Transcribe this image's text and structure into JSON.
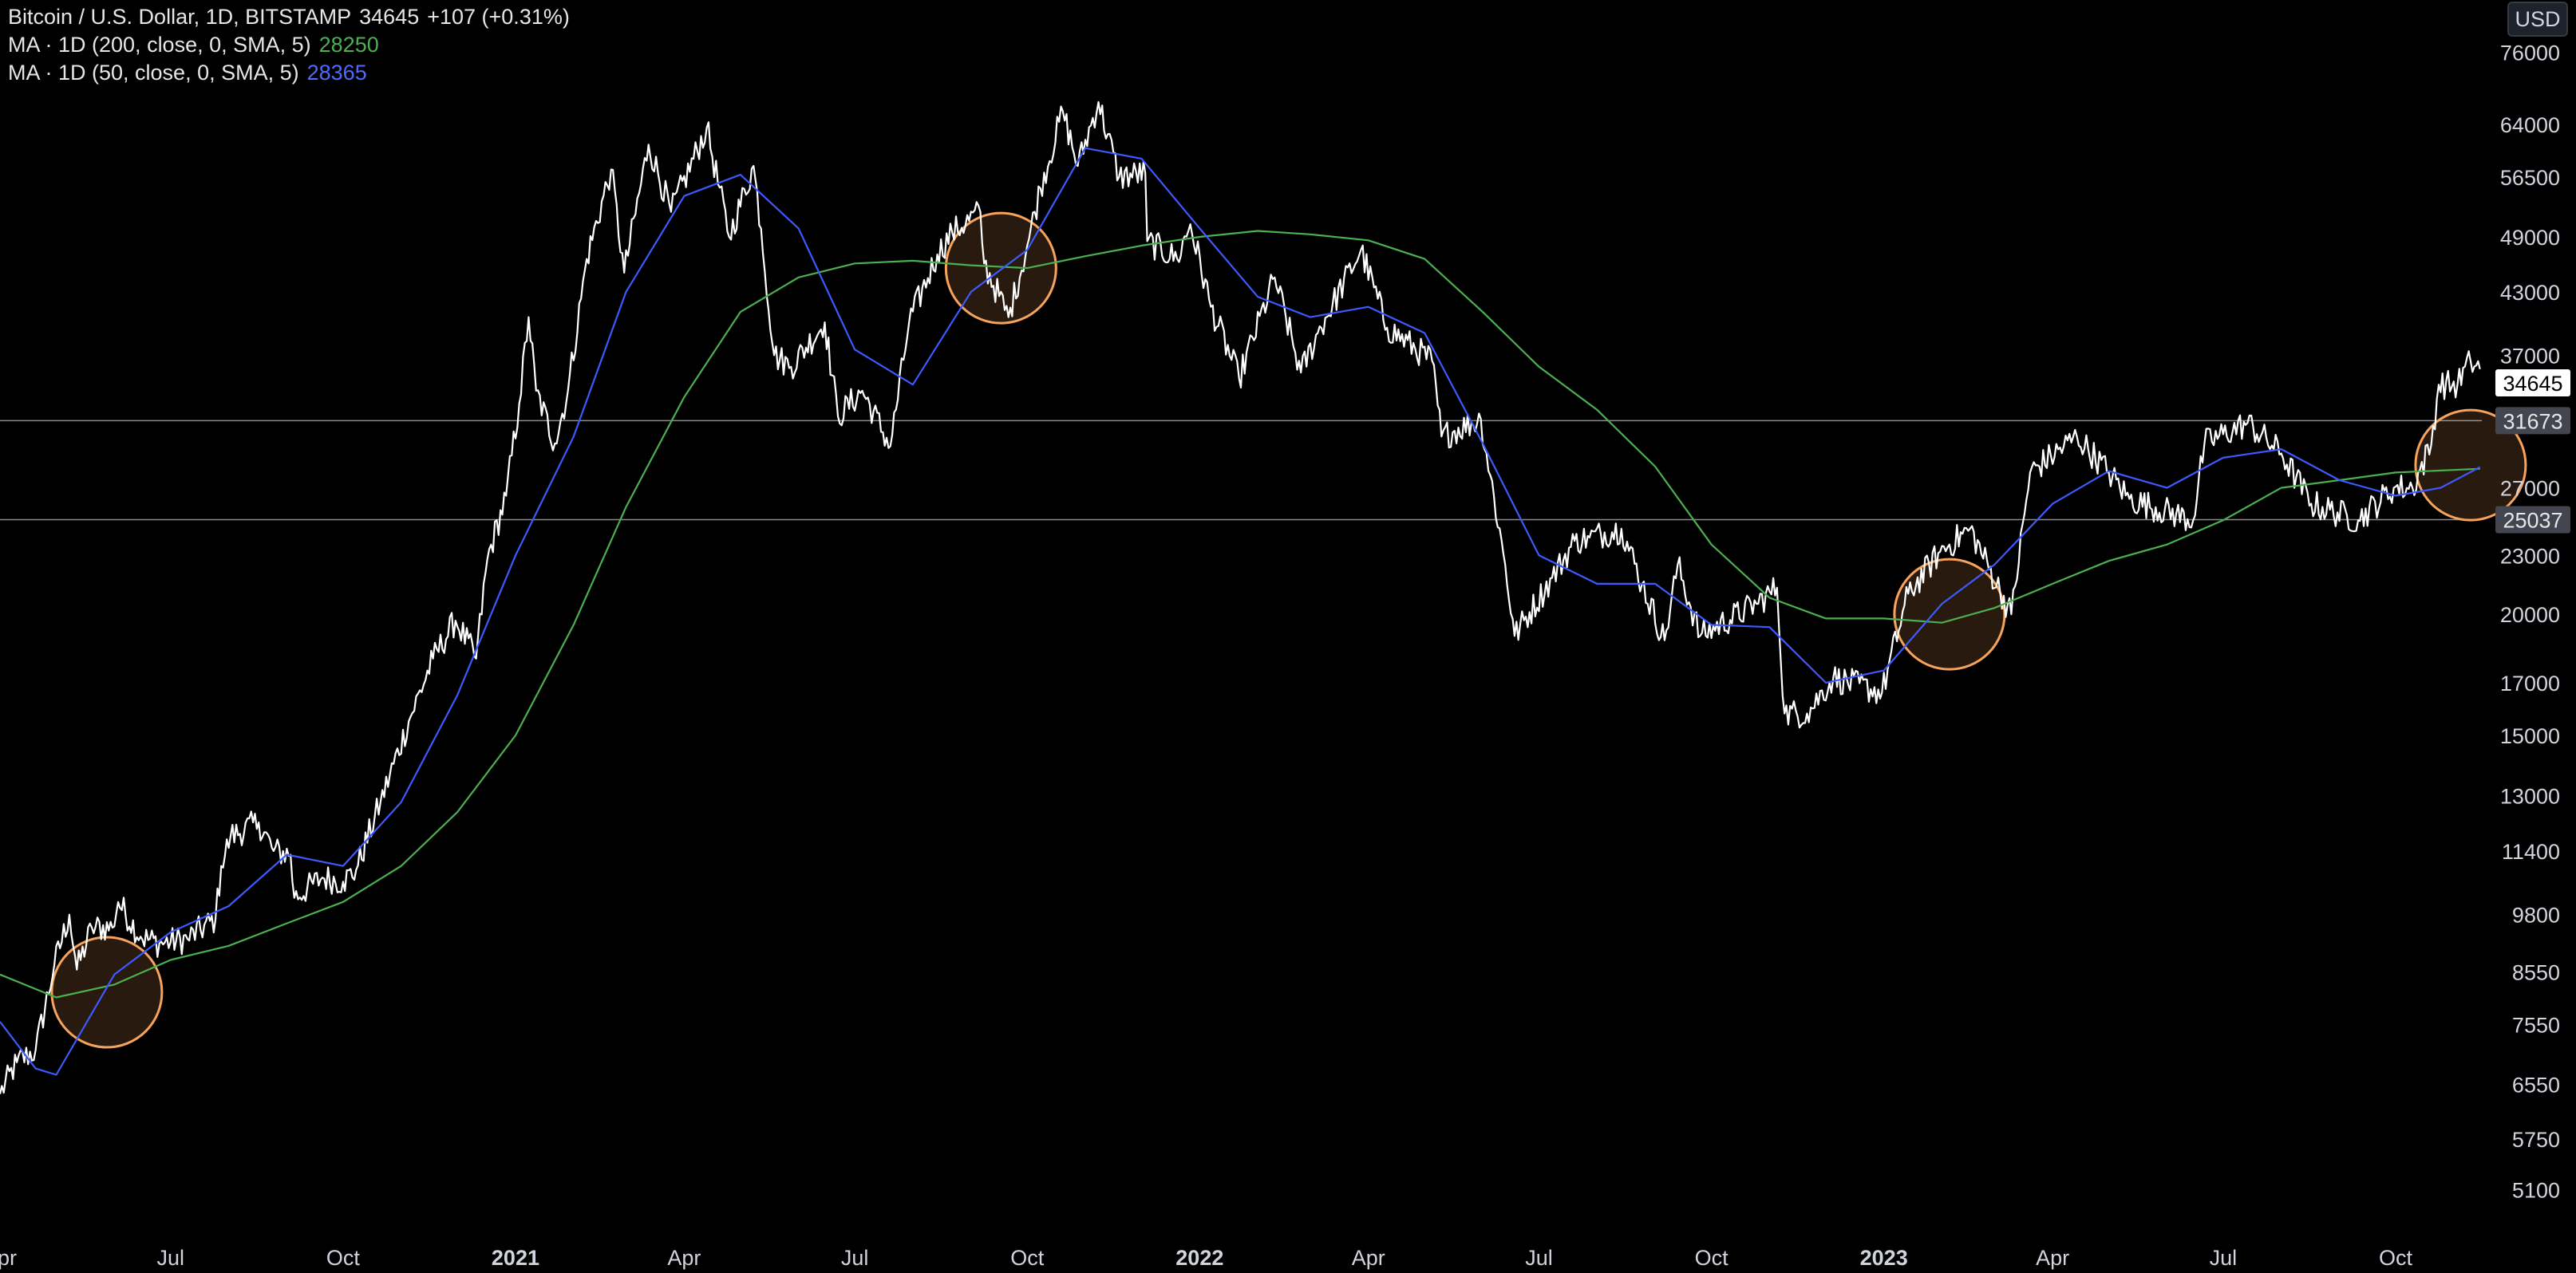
{
  "header": {
    "symbol_text": "Bitcoin / U.S. Dollar, 1D, BITSTAMP",
    "last_price": "34645",
    "change": "+107 (+0.31%)",
    "ma200_label": "MA · 1D (200, close, 0, SMA, 5)",
    "ma200_value": "28250",
    "ma50_label": "MA · 1D (50, close, 0, SMA, 5)",
    "ma50_value": "28365",
    "currency_button": "USD"
  },
  "colors": {
    "background": "#000000",
    "price": "#ffffff",
    "ma200": "#4caf50",
    "ma50": "#3d5afe",
    "highlight_circle": "#f7a35c",
    "level_line": "#8c8c8c",
    "axis_text": "#d1d4dc"
  },
  "chart_data": {
    "type": "line",
    "scale": "log",
    "ylim": [
      4600,
      86000
    ],
    "xlim": [
      "2020-04-01",
      "2023-11-16"
    ],
    "y_ticks": [
      "76000",
      "64000",
      "56500",
      "49000",
      "43000",
      "37000",
      "27000",
      "23000",
      "20000",
      "17000",
      "15000",
      "13000",
      "11400",
      "9800",
      "8550",
      "7550",
      "6550",
      "5750",
      "5100"
    ],
    "x_ticks": [
      {
        "date": "2020-04-01",
        "label": "Apr",
        "bold": false
      },
      {
        "date": "2020-07-01",
        "label": "Jul",
        "bold": false
      },
      {
        "date": "2020-10-01",
        "label": "Oct",
        "bold": false
      },
      {
        "date": "2021-01-01",
        "label": "2021",
        "bold": true
      },
      {
        "date": "2021-04-01",
        "label": "Apr",
        "bold": false
      },
      {
        "date": "2021-07-01",
        "label": "Jul",
        "bold": false
      },
      {
        "date": "2021-10-01",
        "label": "Oct",
        "bold": false
      },
      {
        "date": "2022-01-01",
        "label": "2022",
        "bold": true
      },
      {
        "date": "2022-04-01",
        "label": "Apr",
        "bold": false
      },
      {
        "date": "2022-07-01",
        "label": "Jul",
        "bold": false
      },
      {
        "date": "2022-10-01",
        "label": "Oct",
        "bold": false
      },
      {
        "date": "2023-01-01",
        "label": "2023",
        "bold": true
      },
      {
        "date": "2023-04-01",
        "label": "Apr",
        "bold": false
      },
      {
        "date": "2023-07-01",
        "label": "Jul",
        "bold": false
      },
      {
        "date": "2023-10-01",
        "label": "Oct",
        "bold": false
      }
    ],
    "price_labels": [
      {
        "value": 34645,
        "label": "34645",
        "style": "current"
      },
      {
        "value": 31673,
        "label": "31673",
        "style": "level"
      },
      {
        "value": 25037,
        "label": "25037",
        "style": "level"
      }
    ],
    "horizontal_levels": [
      31673,
      25037
    ],
    "series": [
      {
        "name": "Bitcoin / U.S. Dollar",
        "color": "#ffffff",
        "points": [
          [
            "2020-04-01",
            6400
          ],
          [
            "2020-04-10",
            6900
          ],
          [
            "2020-04-20",
            7100
          ],
          [
            "2020-04-30",
            8700
          ],
          [
            "2020-05-08",
            9800
          ],
          [
            "2020-05-12",
            8600
          ],
          [
            "2020-05-20",
            9500
          ],
          [
            "2020-05-31",
            9500
          ],
          [
            "2020-06-03",
            10100
          ],
          [
            "2020-06-15",
            9300
          ],
          [
            "2020-06-25",
            9150
          ],
          [
            "2020-07-10",
            9250
          ],
          [
            "2020-07-25",
            9700
          ],
          [
            "2020-07-28",
            11000
          ],
          [
            "2020-08-02",
            11800
          ],
          [
            "2020-08-17",
            12200
          ],
          [
            "2020-08-25",
            11400
          ],
          [
            "2020-09-03",
            11300
          ],
          [
            "2020-09-05",
            10200
          ],
          [
            "2020-09-20",
            10700
          ],
          [
            "2020-10-01",
            10600
          ],
          [
            "2020-10-08",
            10900
          ],
          [
            "2020-10-21",
            12800
          ],
          [
            "2020-11-05",
            15500
          ],
          [
            "2020-11-18",
            18000
          ],
          [
            "2020-11-30",
            19700
          ],
          [
            "2020-12-11",
            18000
          ],
          [
            "2020-12-17",
            22800
          ],
          [
            "2020-12-27",
            26500
          ],
          [
            "2021-01-03",
            33000
          ],
          [
            "2021-01-08",
            40500
          ],
          [
            "2021-01-12",
            34000
          ],
          [
            "2021-01-22",
            30000
          ],
          [
            "2021-01-29",
            34000
          ],
          [
            "2021-02-08",
            46500
          ],
          [
            "2021-02-21",
            57500
          ],
          [
            "2021-02-28",
            45000
          ],
          [
            "2021-03-13",
            61000
          ],
          [
            "2021-03-25",
            52000
          ],
          [
            "2021-04-13",
            63500
          ],
          [
            "2021-04-25",
            49000
          ],
          [
            "2021-05-08",
            58000
          ],
          [
            "2021-05-12",
            50000
          ],
          [
            "2021-05-19",
            37000
          ],
          [
            "2021-05-28",
            36000
          ],
          [
            "2021-06-15",
            40000
          ],
          [
            "2021-06-22",
            32000
          ],
          [
            "2021-07-05",
            34000
          ],
          [
            "2021-07-20",
            29800
          ],
          [
            "2021-07-30",
            40000
          ],
          [
            "2021-08-14",
            47000
          ],
          [
            "2021-08-22",
            49500
          ],
          [
            "2021-09-06",
            52000
          ],
          [
            "2021-09-08",
            46000
          ],
          [
            "2021-09-21",
            40500
          ],
          [
            "2021-10-01",
            48000
          ],
          [
            "2021-10-08",
            55000
          ],
          [
            "2021-10-20",
            66000
          ],
          [
            "2021-10-28",
            58000
          ],
          [
            "2021-11-08",
            67500
          ],
          [
            "2021-11-19",
            56500
          ],
          [
            "2021-12-03",
            57000
          ],
          [
            "2021-12-04",
            48500
          ],
          [
            "2021-12-20",
            46500
          ],
          [
            "2021-12-27",
            50500
          ],
          [
            "2022-01-07",
            41500
          ],
          [
            "2022-01-22",
            35000
          ],
          [
            "2022-02-10",
            44500
          ],
          [
            "2022-02-24",
            35500
          ],
          [
            "2022-03-05",
            39000
          ],
          [
            "2022-03-28",
            47500
          ],
          [
            "2022-04-11",
            39500
          ],
          [
            "2022-05-05",
            36500
          ],
          [
            "2022-05-10",
            30500
          ],
          [
            "2022-05-31",
            31800
          ],
          [
            "2022-06-13",
            22500
          ],
          [
            "2022-06-18",
            19000
          ],
          [
            "2022-07-08",
            21800
          ],
          [
            "2022-07-20",
            23800
          ],
          [
            "2022-07-28",
            24000
          ],
          [
            "2022-08-14",
            24500
          ],
          [
            "2022-08-25",
            21500
          ],
          [
            "2022-09-06",
            18800
          ],
          [
            "2022-09-13",
            22500
          ],
          [
            "2022-09-25",
            19000
          ],
          [
            "2022-10-25",
            20500
          ],
          [
            "2022-11-05",
            21300
          ],
          [
            "2022-11-09",
            15800
          ],
          [
            "2022-11-21",
            15800
          ],
          [
            "2022-12-05",
            17200
          ],
          [
            "2022-12-31",
            16600
          ],
          [
            "2023-01-14",
            21000
          ],
          [
            "2023-01-31",
            23200
          ],
          [
            "2023-02-16",
            24500
          ],
          [
            "2023-03-10",
            20000
          ],
          [
            "2023-03-20",
            28000
          ],
          [
            "2023-04-14",
            30500
          ],
          [
            "2023-05-01",
            28000
          ],
          [
            "2023-05-12",
            26300
          ],
          [
            "2023-06-15",
            25000
          ],
          [
            "2023-06-21",
            30000
          ],
          [
            "2023-07-14",
            31500
          ],
          [
            "2023-08-01",
            29300
          ],
          [
            "2023-08-17",
            26000
          ],
          [
            "2023-09-11",
            25000
          ],
          [
            "2023-09-30",
            27000
          ],
          [
            "2023-10-10",
            27000
          ],
          [
            "2023-10-20",
            29900
          ],
          [
            "2023-10-24",
            34500
          ],
          [
            "2023-11-03",
            34500
          ],
          [
            "2023-11-10",
            36500
          ],
          [
            "2023-11-15",
            35800
          ]
        ]
      },
      {
        "name": "MA 200",
        "color": "#4caf50",
        "points": [
          [
            "2020-04-01",
            8500
          ],
          [
            "2020-05-01",
            8050
          ],
          [
            "2020-06-01",
            8300
          ],
          [
            "2020-07-01",
            8800
          ],
          [
            "2020-08-01",
            9100
          ],
          [
            "2020-09-01",
            9600
          ],
          [
            "2020-10-01",
            10100
          ],
          [
            "2020-11-01",
            11000
          ],
          [
            "2020-12-01",
            12500
          ],
          [
            "2021-01-01",
            15000
          ],
          [
            "2021-02-01",
            19500
          ],
          [
            "2021-03-01",
            25800
          ],
          [
            "2021-04-01",
            33500
          ],
          [
            "2021-05-01",
            41000
          ],
          [
            "2021-06-01",
            44500
          ],
          [
            "2021-07-01",
            46000
          ],
          [
            "2021-08-01",
            46300
          ],
          [
            "2021-09-01",
            45800
          ],
          [
            "2021-10-01",
            45500
          ],
          [
            "2021-11-01",
            46800
          ],
          [
            "2021-12-01",
            48000
          ],
          [
            "2022-01-01",
            49000
          ],
          [
            "2022-02-01",
            49700
          ],
          [
            "2022-03-01",
            49300
          ],
          [
            "2022-04-01",
            48600
          ],
          [
            "2022-05-01",
            46500
          ],
          [
            "2022-06-01",
            41000
          ],
          [
            "2022-07-01",
            36000
          ],
          [
            "2022-08-01",
            32500
          ],
          [
            "2022-09-01",
            28400
          ],
          [
            "2022-10-01",
            23600
          ],
          [
            "2022-11-01",
            20800
          ],
          [
            "2022-12-01",
            19800
          ],
          [
            "2023-01-01",
            19800
          ],
          [
            "2023-02-01",
            19600
          ],
          [
            "2023-03-01",
            20300
          ],
          [
            "2023-04-01",
            21500
          ],
          [
            "2023-05-01",
            22700
          ],
          [
            "2023-06-01",
            23600
          ],
          [
            "2023-07-01",
            25000
          ],
          [
            "2023-08-01",
            27000
          ],
          [
            "2023-09-01",
            27500
          ],
          [
            "2023-10-01",
            28000
          ],
          [
            "2023-11-15",
            28250
          ]
        ]
      },
      {
        "name": "MA 50",
        "color": "#3d5afe",
        "points": [
          [
            "2020-04-01",
            7600
          ],
          [
            "2020-04-20",
            6800
          ],
          [
            "2020-05-01",
            6700
          ],
          [
            "2020-06-01",
            8500
          ],
          [
            "2020-07-01",
            9400
          ],
          [
            "2020-08-01",
            10000
          ],
          [
            "2020-09-01",
            11300
          ],
          [
            "2020-10-01",
            11000
          ],
          [
            "2020-11-01",
            12800
          ],
          [
            "2020-12-01",
            16500
          ],
          [
            "2021-01-01",
            23000
          ],
          [
            "2021-02-01",
            30500
          ],
          [
            "2021-03-01",
            43000
          ],
          [
            "2021-04-01",
            54000
          ],
          [
            "2021-05-01",
            56800
          ],
          [
            "2021-06-01",
            50000
          ],
          [
            "2021-07-01",
            37500
          ],
          [
            "2021-08-01",
            34500
          ],
          [
            "2021-09-01",
            43000
          ],
          [
            "2021-10-01",
            47500
          ],
          [
            "2021-11-01",
            60500
          ],
          [
            "2021-12-01",
            59000
          ],
          [
            "2022-01-01",
            50000
          ],
          [
            "2022-02-01",
            42500
          ],
          [
            "2022-03-01",
            40500
          ],
          [
            "2022-04-01",
            41500
          ],
          [
            "2022-05-01",
            39000
          ],
          [
            "2022-06-01",
            30000
          ],
          [
            "2022-07-01",
            23000
          ],
          [
            "2022-08-01",
            21500
          ],
          [
            "2022-09-01",
            21500
          ],
          [
            "2022-10-01",
            19500
          ],
          [
            "2022-11-01",
            19400
          ],
          [
            "2022-12-01",
            17000
          ],
          [
            "2023-01-01",
            17500
          ],
          [
            "2023-02-01",
            20500
          ],
          [
            "2023-03-01",
            22500
          ],
          [
            "2023-04-01",
            26000
          ],
          [
            "2023-05-01",
            28100
          ],
          [
            "2023-06-01",
            27000
          ],
          [
            "2023-07-01",
            29000
          ],
          [
            "2023-08-01",
            29600
          ],
          [
            "2023-09-01",
            27500
          ],
          [
            "2023-10-01",
            26500
          ],
          [
            "2023-10-25",
            27000
          ],
          [
            "2023-11-15",
            28365
          ]
        ]
      }
    ],
    "highlight_circles": [
      {
        "date": "2020-05-28",
        "value": 8150
      },
      {
        "date": "2021-09-17",
        "value": 45500
      },
      {
        "date": "2023-02-05",
        "value": 20000
      },
      {
        "date": "2023-11-10",
        "value": 28500
      }
    ]
  }
}
